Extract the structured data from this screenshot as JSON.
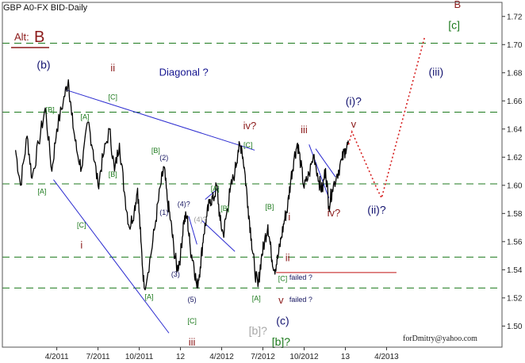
{
  "chart_data": {
    "type": "line",
    "title": "GBP A0-FX BID-Daily",
    "alt_label": "Alt:",
    "alt_wave": "B",
    "watermark": "forDmitry@yahoo.com",
    "xlabel": "",
    "ylabel": "",
    "x_ticks": [
      "4/2011",
      "7/2011",
      "10/2011",
      "12",
      "4/2012",
      "7/2012",
      "10/2012",
      "13",
      "4/2013"
    ],
    "y_ticks": [
      "1.50",
      "1.52",
      "1.54",
      "1.56",
      "1.58",
      "1.60",
      "1.62",
      "1.64",
      "1.66",
      "1.68",
      "1.70",
      "1.72"
    ],
    "ylim": [
      1.485,
      1.73
    ],
    "grid": "dashed green horizontal levels",
    "levels": [
      1.527,
      1.549,
      1.601,
      1.652,
      1.701
    ],
    "series": [
      {
        "style": "price",
        "color": "#000000",
        "points": [
          [
            2011.0,
            1.625
          ],
          [
            2011.03,
            1.6
          ],
          [
            2011.07,
            1.635
          ],
          [
            2011.1,
            1.605
          ],
          [
            2011.14,
            1.63
          ],
          [
            2011.18,
            1.655
          ],
          [
            2011.22,
            1.61
          ],
          [
            2011.25,
            1.64
          ],
          [
            2011.29,
            1.66
          ],
          [
            2011.32,
            1.675
          ],
          [
            2011.34,
            1.65
          ],
          [
            2011.37,
            1.625
          ],
          [
            2011.4,
            1.612
          ],
          [
            2011.44,
            1.645
          ],
          [
            2011.47,
            1.625
          ],
          [
            2011.5,
            1.6
          ],
          [
            2011.53,
            1.62
          ],
          [
            2011.57,
            1.64
          ],
          [
            2011.6,
            1.61
          ],
          [
            2011.63,
            1.63
          ],
          [
            2011.66,
            1.595
          ],
          [
            2011.69,
            1.57
          ],
          [
            2011.72,
            1.582
          ],
          [
            2011.74,
            1.598
          ],
          [
            2011.76,
            1.56
          ],
          [
            2011.78,
            1.527
          ],
          [
            2011.82,
            1.55
          ],
          [
            2011.85,
            1.575
          ],
          [
            2011.88,
            1.6
          ],
          [
            2011.9,
            1.613
          ],
          [
            2011.92,
            1.59
          ],
          [
            2011.94,
            1.575
          ],
          [
            2011.96,
            1.555
          ],
          [
            2011.98,
            1.54
          ],
          [
            2012.0,
            1.55
          ],
          [
            2012.02,
            1.575
          ],
          [
            2012.04,
            1.578
          ],
          [
            2012.06,
            1.555
          ],
          [
            2012.08,
            1.545
          ],
          [
            2012.1,
            1.527
          ],
          [
            2012.12,
            1.542
          ],
          [
            2012.14,
            1.565
          ],
          [
            2012.16,
            1.578
          ],
          [
            2012.18,
            1.59
          ],
          [
            2012.2,
            1.59
          ],
          [
            2012.22,
            1.6
          ],
          [
            2012.24,
            1.575
          ],
          [
            2012.26,
            1.565
          ],
          [
            2012.28,
            1.58
          ],
          [
            2012.3,
            1.595
          ],
          [
            2012.33,
            1.61
          ],
          [
            2012.35,
            1.625
          ],
          [
            2012.37,
            1.628
          ],
          [
            2012.39,
            1.61
          ],
          [
            2012.41,
            1.585
          ],
          [
            2012.43,
            1.562
          ],
          [
            2012.45,
            1.54
          ],
          [
            2012.47,
            1.528
          ],
          [
            2012.49,
            1.548
          ],
          [
            2012.51,
            1.56
          ],
          [
            2012.53,
            1.572
          ],
          [
            2012.55,
            1.552
          ],
          [
            2012.57,
            1.54
          ],
          [
            2012.59,
            1.548
          ],
          [
            2012.61,
            1.562
          ],
          [
            2012.63,
            1.575
          ],
          [
            2012.65,
            1.585
          ],
          [
            2012.67,
            1.605
          ],
          [
            2012.69,
            1.62
          ],
          [
            2012.71,
            1.63
          ],
          [
            2012.73,
            1.615
          ],
          [
            2012.75,
            1.598
          ],
          [
            2012.78,
            1.608
          ],
          [
            2012.81,
            1.622
          ],
          [
            2012.84,
            1.603
          ],
          [
            2012.86,
            1.596
          ],
          [
            2012.88,
            1.612
          ],
          [
            2012.9,
            1.585
          ],
          [
            2012.92,
            1.597
          ],
          [
            2012.95,
            1.608
          ],
          [
            2012.98,
            1.618
          ],
          [
            2013.0,
            1.626
          ],
          [
            2013.02,
            1.629
          ]
        ]
      },
      {
        "style": "forecast",
        "color": "#d62020",
        "points": [
          [
            2013.02,
            1.629
          ],
          [
            2013.04,
            1.638
          ],
          [
            2013.19,
            1.598
          ],
          [
            2013.22,
            1.591
          ],
          [
            2013.48,
            1.705
          ]
        ]
      }
    ],
    "trendlines": [
      {
        "color": "#2b2bd0",
        "from": [
          2011.3,
          1.668
        ],
        "to": [
          2012.45,
          1.625
        ]
      },
      {
        "color": "#2b2bd0",
        "from": [
          2011.23,
          1.604
        ],
        "to": [
          2011.93,
          1.495
        ]
      },
      {
        "color": "#2b2bd0",
        "from": [
          2012.13,
          1.575
        ],
        "to": [
          2012.33,
          1.553
        ]
      },
      {
        "color": "#2b2bd0",
        "from": [
          2012.15,
          1.59
        ],
        "to": [
          2012.23,
          1.598
        ]
      },
      {
        "color": "#2b2bd0",
        "from": [
          2012.82,
          1.626
        ],
        "to": [
          2012.94,
          1.606
        ]
      },
      {
        "color": "#2b2bd0",
        "from": [
          2012.78,
          1.629
        ],
        "to": [
          2012.9,
          1.591
        ]
      },
      {
        "color": "#2b2bd0",
        "from": [
          2012.05,
          1.578
        ],
        "to": [
          2012.1,
          1.558
        ]
      },
      {
        "color": "#c01010",
        "from": [
          2012.58,
          1.538
        ],
        "to": [
          2013.31,
          1.538
        ]
      }
    ],
    "annotations": [
      {
        "text": "(b)",
        "x": 2011.17,
        "y": 1.683,
        "style": "big-navy"
      },
      {
        "text": "ii",
        "x": 2011.59,
        "y": 1.681,
        "style": "big-red"
      },
      {
        "text": "Diagonal ?",
        "x": 2012.02,
        "y": 1.678,
        "style": "diag"
      },
      {
        "text": "[B]",
        "x": 2011.21,
        "y": 1.652,
        "style": "green"
      },
      {
        "text": "[A]",
        "x": 2011.42,
        "y": 1.647,
        "style": "green"
      },
      {
        "text": "[C]",
        "x": 2011.59,
        "y": 1.661,
        "style": "green"
      },
      {
        "text": "[B]",
        "x": 2011.85,
        "y": 1.623,
        "style": "green"
      },
      {
        "text": "(2)",
        "x": 2011.9,
        "y": 1.618,
        "style": "navy"
      },
      {
        "text": "[B]",
        "x": 2011.59,
        "y": 1.606,
        "style": "green"
      },
      {
        "text": "[A]",
        "x": 2011.16,
        "y": 1.594,
        "style": "green"
      },
      {
        "text": "[C]",
        "x": 2011.4,
        "y": 1.57,
        "style": "green"
      },
      {
        "text": "i",
        "x": 2011.4,
        "y": 1.555,
        "style": "big-red"
      },
      {
        "text": "(4)?",
        "x": 2012.02,
        "y": 1.585,
        "style": "navy"
      },
      {
        "text": "(4)?",
        "x": 2012.12,
        "y": 1.574,
        "style": "grey"
      },
      {
        "text": "(1)",
        "x": 2011.9,
        "y": 1.579,
        "style": "navy"
      },
      {
        "text": "(3)",
        "x": 2011.97,
        "y": 1.535,
        "style": "navy"
      },
      {
        "text": "[A]",
        "x": 2011.81,
        "y": 1.519,
        "style": "green"
      },
      {
        "text": "(5)",
        "x": 2012.07,
        "y": 1.517,
        "style": "navy"
      },
      {
        "text": "[C]",
        "x": 2012.07,
        "y": 1.502,
        "style": "green"
      },
      {
        "text": "iii",
        "x": 2012.07,
        "y": 1.486,
        "style": "big-red"
      },
      {
        "text": "[A]",
        "x": 2012.21,
        "y": 1.596,
        "style": "green"
      },
      {
        "text": "[B]",
        "x": 2012.27,
        "y": 1.582,
        "style": "green"
      },
      {
        "text": "iv?",
        "x": 2012.42,
        "y": 1.64,
        "style": "big-red"
      },
      {
        "text": "[C]",
        "x": 2012.41,
        "y": 1.627,
        "style": "green"
      },
      {
        "text": "[A]",
        "x": 2012.46,
        "y": 1.518,
        "style": "green"
      },
      {
        "text": "[b]?",
        "x": 2012.47,
        "y": 1.494,
        "style": "big-grey"
      },
      {
        "text": "[B]",
        "x": 2012.54,
        "y": 1.583,
        "style": "green"
      },
      {
        "text": "i",
        "x": 2012.66,
        "y": 1.575,
        "style": "big-red"
      },
      {
        "text": "ii",
        "x": 2012.65,
        "y": 1.546,
        "style": "big-red"
      },
      {
        "text": "[C]",
        "x": 2012.62,
        "y": 1.532,
        "style": "green"
      },
      {
        "text": "v",
        "x": 2012.61,
        "y": 1.516,
        "style": "big-red"
      },
      {
        "text": "(c)",
        "x": 2012.62,
        "y": 1.501,
        "style": "big-navy"
      },
      {
        "text": "[b]?",
        "x": 2012.61,
        "y": 1.486,
        "style": "big-green"
      },
      {
        "text": "failed ?",
        "x": 2012.73,
        "y": 1.533,
        "style": "small-navy"
      },
      {
        "text": "failed ?",
        "x": 2012.73,
        "y": 1.517,
        "style": "small-navy"
      },
      {
        "text": "iii",
        "x": 2012.75,
        "y": 1.637,
        "style": "big-red"
      },
      {
        "text": "iv?",
        "x": 2012.93,
        "y": 1.578,
        "style": "big-red"
      },
      {
        "text": "(i)?",
        "x": 2013.05,
        "y": 1.657,
        "style": "big-navy"
      },
      {
        "text": "v",
        "x": 2013.05,
        "y": 1.641,
        "style": "big-red"
      },
      {
        "text": "(ii)?",
        "x": 2013.19,
        "y": 1.58,
        "style": "big-navy"
      },
      {
        "text": "(iii)",
        "x": 2013.55,
        "y": 1.678,
        "style": "big-navy"
      },
      {
        "text": "B",
        "x": 2013.68,
        "y": 1.726,
        "style": "big-red"
      },
      {
        "text": "[c]",
        "x": 2013.66,
        "y": 1.711,
        "style": "big-green"
      }
    ]
  },
  "colors": {
    "price": "#000000",
    "level": "#1d7a1d",
    "trendline": "#2b2bd0",
    "forecast": "#d62020",
    "alt_underline": "#8b1a1a"
  }
}
